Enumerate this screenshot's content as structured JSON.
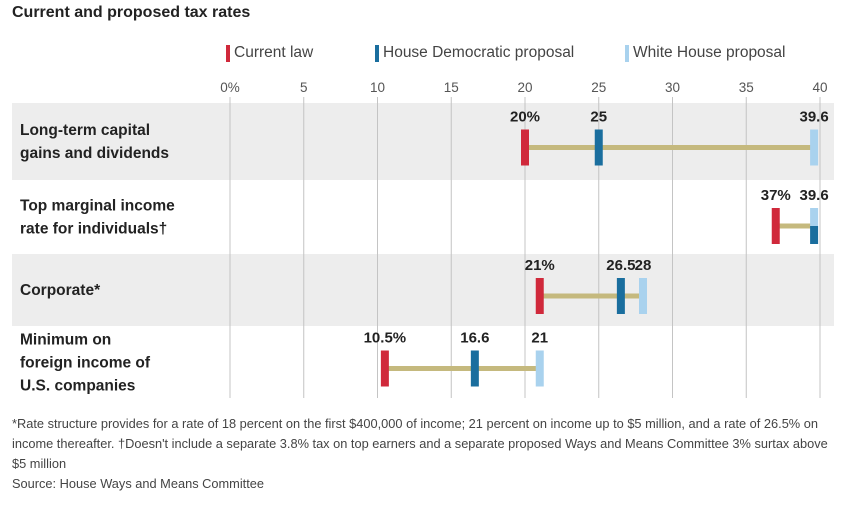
{
  "title": "Current and proposed tax rates",
  "legend": [
    {
      "label": "Current law",
      "color": "#d0293b"
    },
    {
      "label": "House Democratic proposal",
      "color": "#1a6e9e"
    },
    {
      "label": "White House proposal",
      "color": "#a9d2ee"
    }
  ],
  "chart_data": {
    "type": "dumbbell",
    "xlim": [
      0,
      40
    ],
    "x_ticks": [
      0,
      5,
      10,
      15,
      20,
      25,
      30,
      35,
      40
    ],
    "x_tick_labels": [
      "0%",
      "5",
      "10",
      "15",
      "20",
      "25",
      "30",
      "35",
      "40"
    ],
    "series_colors": {
      "current": "#d0293b",
      "house": "#1a6e9e",
      "white_house": "#a9d2ee",
      "connector": "#c5b97e"
    },
    "rows": [
      {
        "category": "Long-term capital gains and dividends",
        "label_lines": [
          "Long-term capital",
          "gains and dividends"
        ],
        "current": 20,
        "house": 25,
        "white_house": 39.6,
        "labels": {
          "current": "20%",
          "house": "25",
          "white_house": "39.6"
        }
      },
      {
        "category": "Top marginal income rate for individuals",
        "label_lines": [
          "Top marginal income",
          "rate for individuals†"
        ],
        "current": 37,
        "house": 39.6,
        "white_house": 39.6,
        "labels": {
          "current": "37%",
          "house": "",
          "white_house": "39.6"
        }
      },
      {
        "category": "Corporate",
        "label_lines": [
          "Corporate*"
        ],
        "current": 21,
        "house": 26.5,
        "white_house": 28,
        "labels": {
          "current": "21%",
          "house": "26.5",
          "white_house": "28"
        }
      },
      {
        "category": "Minimum on foreign income of U.S. companies",
        "label_lines": [
          "Minimum on",
          "foreign income of",
          "U.S. companies"
        ],
        "current": 10.5,
        "house": 16.6,
        "white_house": 21,
        "labels": {
          "current": "10.5%",
          "house": "16.6",
          "white_house": "21"
        }
      }
    ]
  },
  "footnotes": [
    "*Rate structure provides for a rate of 18 percent on the first $400,000 of income; 21 percent on income up to $5 million, and a rate of 26.5% on income thereafter. †Doesn't include a separate 3.8% tax on top earners and a separate proposed Ways and Means Committee 3% surtax above $5 million",
    "Source: House Ways and Means Committee"
  ]
}
